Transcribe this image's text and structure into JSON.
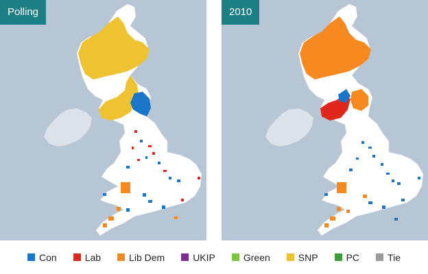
{
  "maps": [
    {
      "title": "Polling"
    },
    {
      "title": "2010"
    }
  ],
  "colors": {
    "sea": "#b7c6d4",
    "land": "#ffffff",
    "ireland": "#dbe2ea",
    "tab": "#1b7f84"
  },
  "parties": {
    "con": {
      "label": "Con",
      "color": "#1976c9"
    },
    "lab": {
      "label": "Lab",
      "color": "#e1261c"
    },
    "libdem": {
      "label": "Lib Dem",
      "color": "#f6891f"
    },
    "ukip": {
      "label": "UKIP",
      "color": "#7b2d90"
    },
    "green": {
      "label": "Green",
      "color": "#7cc243"
    },
    "snp": {
      "label": "SNP",
      "color": "#eec230"
    },
    "pc": {
      "label": "PC",
      "color": "#3f9d3a"
    },
    "tie": {
      "label": "Tie",
      "color": "#9b9b9b"
    }
  }
}
